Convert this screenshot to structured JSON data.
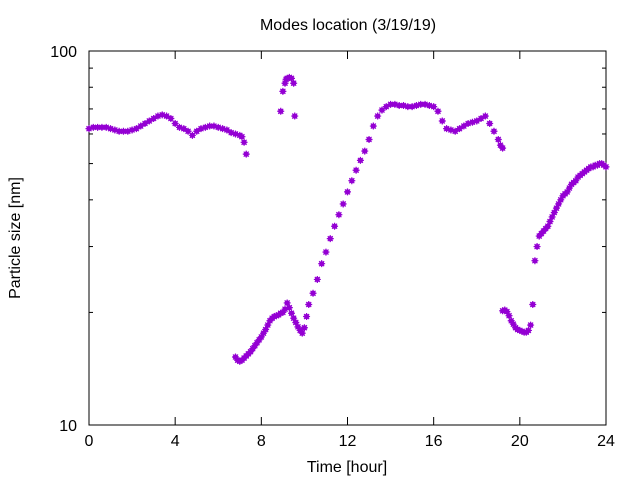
{
  "chart_data": {
    "type": "scatter",
    "title": "Modes location (3/19/19)",
    "xlabel": "Time [hour]",
    "ylabel": "Particle size [nm]",
    "xlim": [
      0,
      24
    ],
    "ylim": [
      10,
      100
    ],
    "yscale": "log",
    "xticks": [
      0,
      4,
      8,
      12,
      16,
      20,
      24
    ],
    "yticks": [
      10,
      100
    ],
    "grid": false,
    "legend": "none",
    "marker_color": "#9400d3",
    "series": [
      {
        "segments": [
          {
            "x": [
              0,
              0.2,
              0.4,
              0.6,
              0.8,
              1.0,
              1.2,
              1.4,
              1.6,
              1.8,
              2.0,
              2.2,
              2.4,
              2.6,
              2.8,
              3.0,
              3.2,
              3.4,
              3.6,
              3.8,
              4.0,
              4.2,
              4.4,
              4.6,
              4.8,
              5.0,
              5.2,
              5.4,
              5.6,
              5.8,
              6.0,
              6.2,
              6.4,
              6.6,
              6.8,
              7.0,
              7.1,
              7.2,
              7.3
            ],
            "y": [
              62,
              62.5,
              62.5,
              62.5,
              62.5,
              62,
              61.5,
              61,
              61,
              61,
              61.5,
              62,
              63,
              64,
              65,
              66,
              67,
              67.5,
              67,
              66,
              64,
              62.5,
              62,
              61,
              59.5,
              61,
              62,
              62.5,
              63,
              63,
              62.5,
              62,
              61.5,
              60.5,
              60,
              59.5,
              59,
              57,
              53
            ]
          },
          {
            "x": [
              6.8,
              6.9,
              7.0,
              7.1,
              7.2,
              7.3,
              7.4,
              7.5,
              7.6,
              7.7,
              7.8,
              7.9,
              8.0,
              8.1,
              8.2,
              8.3,
              8.4,
              8.5,
              8.6,
              8.7,
              8.8,
              8.9,
              9.0,
              9.1,
              9.2,
              9.3,
              9.4,
              9.5,
              9.6,
              9.7,
              9.8,
              9.9,
              10.0,
              10.1
            ],
            "y": [
              15.2,
              14.9,
              14.8,
              14.9,
              15.1,
              15.3,
              15.5,
              15.7,
              16.0,
              16.3,
              16.6,
              16.9,
              17.2,
              17.6,
              18.0,
              18.5,
              19.0,
              19.3,
              19.5,
              19.6,
              19.7,
              19.9,
              20.0,
              20.4,
              21.2,
              20.6,
              19.9,
              19.3,
              18.8,
              18.3,
              17.9,
              17.6,
              18.2,
              19.5
            ]
          },
          {
            "x": [
              8.9,
              9.0,
              9.1,
              9.15,
              9.2,
              9.3,
              9.4,
              9.5,
              9.55
            ],
            "y": [
              69,
              78,
              82,
              84,
              84.5,
              85,
              84.5,
              82,
              67
            ]
          },
          {
            "x": [
              10.2,
              10.4,
              10.6,
              10.8,
              11.0,
              11.2,
              11.4,
              11.6,
              11.8,
              12.0,
              12.2,
              12.4,
              12.6,
              12.8,
              13.0,
              13.2,
              13.4,
              13.6,
              13.8,
              14.0,
              14.2,
              14.4,
              14.6,
              14.8,
              15.0,
              15.2,
              15.4,
              15.6,
              15.8,
              16.0,
              16.2,
              16.4,
              16.6,
              16.8,
              17.0,
              17.2,
              17.4,
              17.6,
              17.8,
              18.0,
              18.2,
              18.4,
              18.6,
              18.8,
              19.0,
              19.1,
              19.2
            ],
            "y": [
              21,
              22.5,
              24.5,
              27,
              29,
              31.5,
              34,
              36.5,
              39,
              42,
              45,
              48,
              51,
              54,
              58,
              63,
              67,
              69.5,
              71,
              72,
              72,
              71.5,
              71.5,
              71,
              71,
              71.5,
              72,
              72,
              71.5,
              71,
              69,
              65,
              62,
              61.5,
              61,
              62,
              63,
              64,
              64.5,
              65,
              66,
              67,
              64,
              61,
              58,
              56,
              55
            ]
          },
          {
            "x": [
              19.2,
              19.3,
              19.4,
              19.5,
              19.6,
              19.7,
              19.8,
              19.9,
              20.0,
              20.1,
              20.2,
              20.3,
              20.4,
              20.5,
              20.6,
              20.7,
              20.8
            ],
            "y": [
              20.2,
              20.3,
              20.1,
              19.6,
              19.0,
              18.6,
              18.2,
              18.0,
              17.9,
              17.8,
              17.7,
              17.7,
              17.9,
              18.5,
              21,
              27.5,
              30
            ]
          },
          {
            "x": [
              20.9,
              21.0,
              21.1,
              21.2,
              21.3,
              21.4,
              21.5,
              21.6,
              21.7,
              21.8,
              21.9,
              22.0,
              22.1,
              22.2,
              22.3,
              22.4,
              22.5,
              22.6,
              22.7,
              22.8,
              22.9,
              23.0,
              23.1,
              23.2,
              23.3,
              23.4,
              23.5,
              23.6,
              23.7,
              23.8,
              23.9,
              24.0
            ],
            "y": [
              32,
              32.5,
              33,
              33.5,
              34,
              35,
              36,
              37,
              38,
              39,
              40,
              41,
              41.5,
              42,
              43,
              44,
              44.5,
              45,
              46,
              46.5,
              47,
              47.5,
              48,
              48.5,
              49,
              49,
              49.5,
              49.5,
              50,
              50,
              49.5,
              49
            ]
          }
        ]
      }
    ]
  }
}
